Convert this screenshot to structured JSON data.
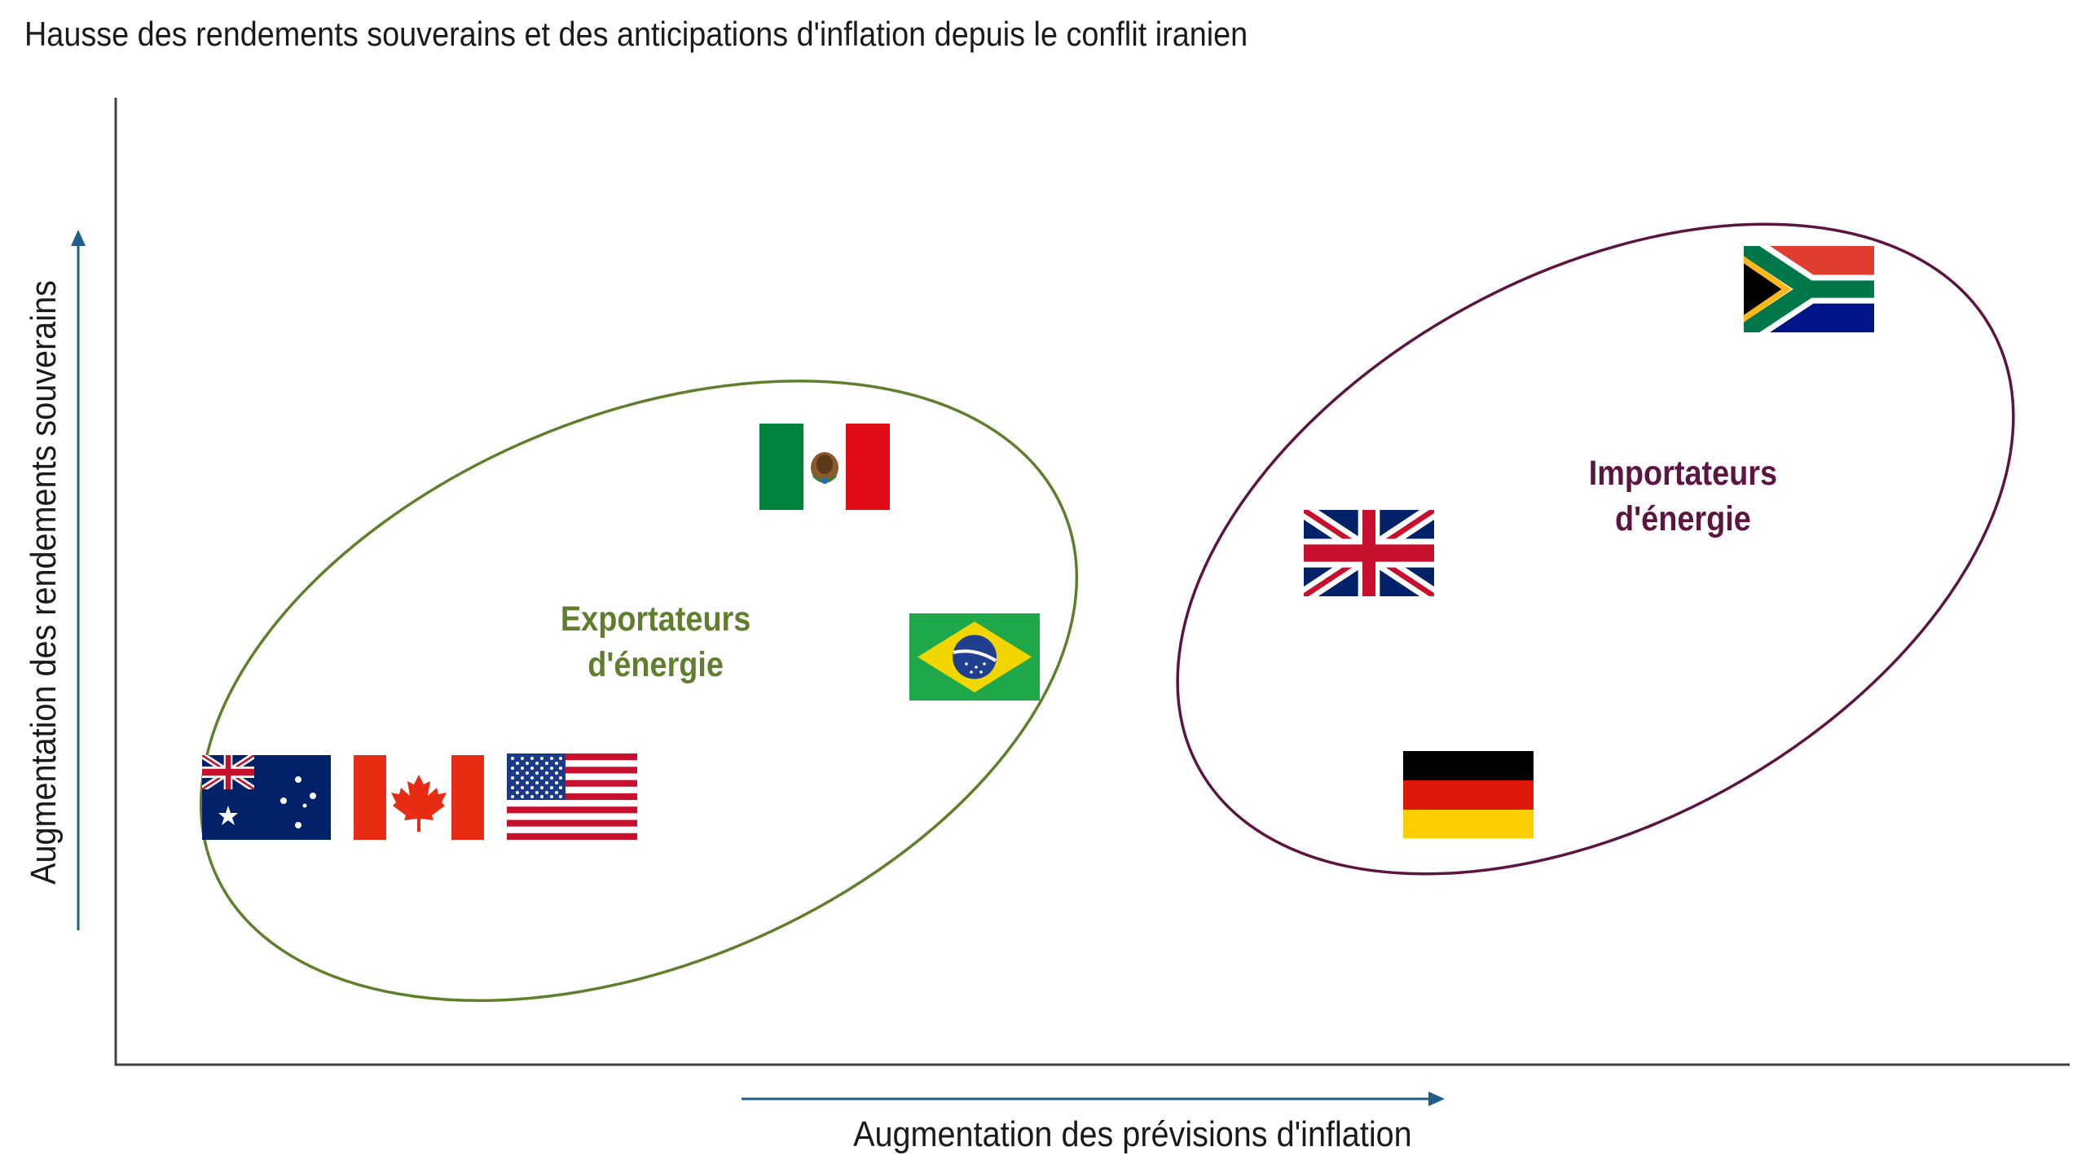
{
  "title": "Hausse des rendements souverains et des anticipations d'inflation depuis le conflit iranien",
  "axes": {
    "x_label": "Augmentation des prévisions d'inflation",
    "y_label": "Augmentation des rendements souverains"
  },
  "groups": {
    "exporters": {
      "line1": "Exportateurs",
      "line2": "d'énergie",
      "color": "#5f7f2d"
    },
    "importers": {
      "line1": "Importateurs",
      "line2": "d'énergie",
      "color": "#5c1440"
    }
  },
  "flags": [
    {
      "country": "Australie",
      "group": "exporters"
    },
    {
      "country": "Canada",
      "group": "exporters"
    },
    {
      "country": "États-Unis",
      "group": "exporters"
    },
    {
      "country": "Mexique",
      "group": "exporters"
    },
    {
      "country": "Brésil",
      "group": "exporters"
    },
    {
      "country": "Royaume-Uni",
      "group": "importers"
    },
    {
      "country": "Allemagne",
      "group": "importers"
    },
    {
      "country": "Afrique du Sud",
      "group": "importers"
    }
  ],
  "colors": {
    "axis": "#404040",
    "arrow": "#1f5f8b"
  }
}
